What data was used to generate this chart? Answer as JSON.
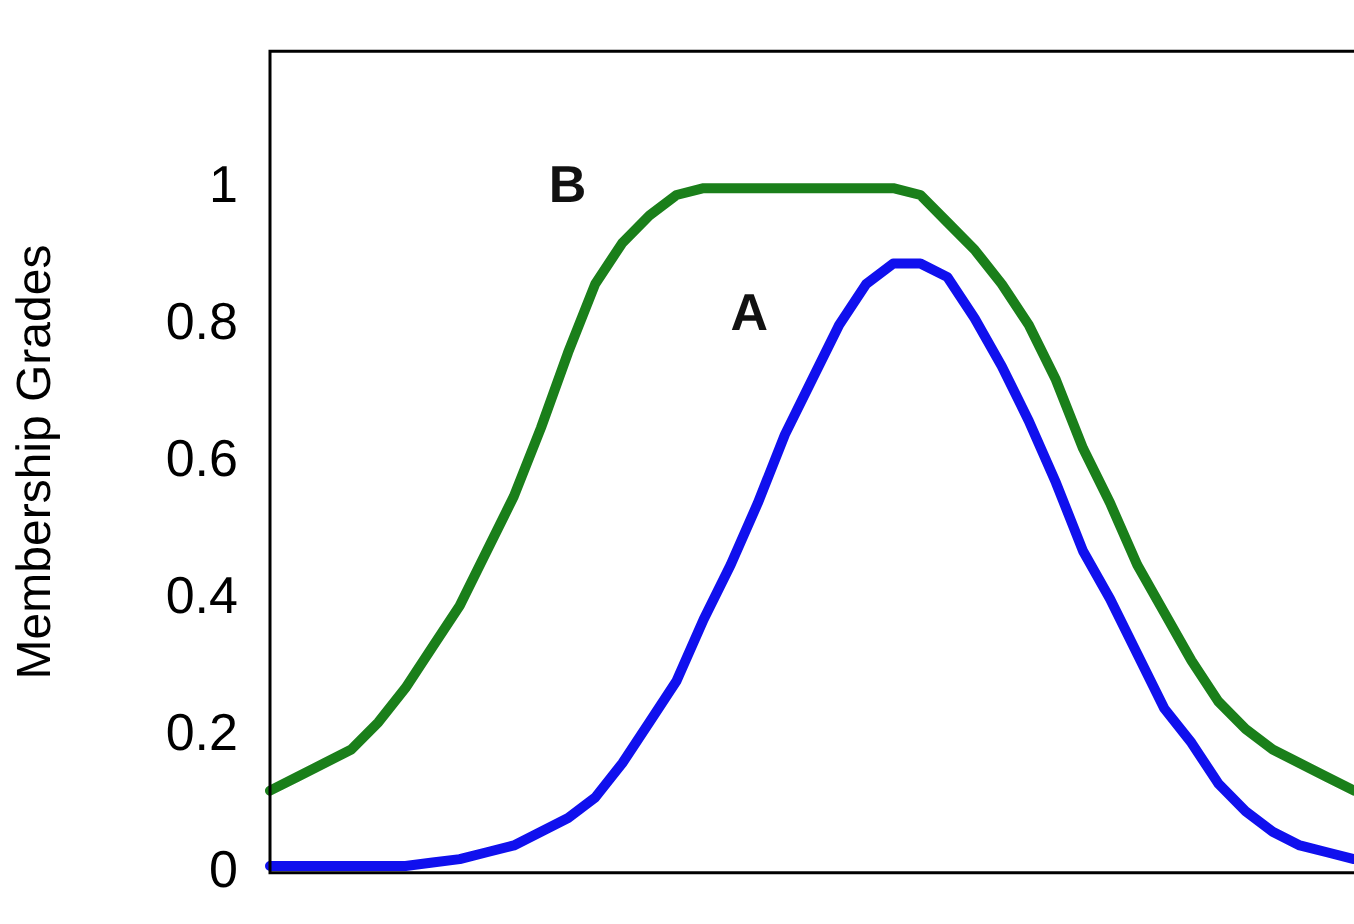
{
  "chart_data": {
    "type": "line",
    "ylabel": "Membership Grades",
    "categories": [
      null,
      null,
      null,
      null,
      null,
      null,
      null,
      null,
      null,
      null,
      null,
      null,
      null,
      null,
      null,
      null,
      null,
      null,
      null,
      null,
      null,
      null,
      null,
      null,
      null,
      null,
      null,
      null,
      null,
      null,
      null,
      null,
      null,
      null,
      null,
      null,
      null,
      null,
      null,
      null,
      null
    ],
    "series": [
      {
        "name": "B",
        "color": "#1a7f1a",
        "values": [
          0.12,
          0.14,
          0.16,
          0.18,
          0.22,
          0.27,
          0.33,
          0.39,
          0.47,
          0.55,
          0.65,
          0.76,
          0.86,
          0.92,
          0.96,
          0.99,
          1.0,
          1.0,
          1.0,
          1.0,
          1.0,
          1.0,
          1.0,
          1.0,
          0.99,
          0.95,
          0.91,
          0.86,
          0.8,
          0.72,
          0.62,
          0.54,
          0.45,
          0.38,
          0.31,
          0.25,
          0.21,
          0.18,
          0.16,
          0.14,
          0.12
        ]
      },
      {
        "name": "A",
        "color": "#1010ee",
        "values": [
          0.01,
          0.01,
          0.01,
          0.01,
          0.01,
          0.01,
          0.015,
          0.02,
          0.03,
          0.04,
          0.06,
          0.08,
          0.11,
          0.16,
          0.22,
          0.28,
          0.37,
          0.45,
          0.54,
          0.64,
          0.72,
          0.8,
          0.86,
          0.89,
          0.89,
          0.87,
          0.81,
          0.74,
          0.66,
          0.57,
          0.47,
          0.4,
          0.32,
          0.24,
          0.19,
          0.13,
          0.09,
          0.06,
          0.04,
          0.03,
          0.02
        ]
      }
    ],
    "ylim": [
      0,
      1.2
    ],
    "yticks": [
      0,
      0.2,
      0.4,
      0.6,
      0.8,
      1
    ],
    "grid": false,
    "legend": false,
    "marker": "none",
    "line_style": "solid",
    "tick_labels": "y"
  }
}
